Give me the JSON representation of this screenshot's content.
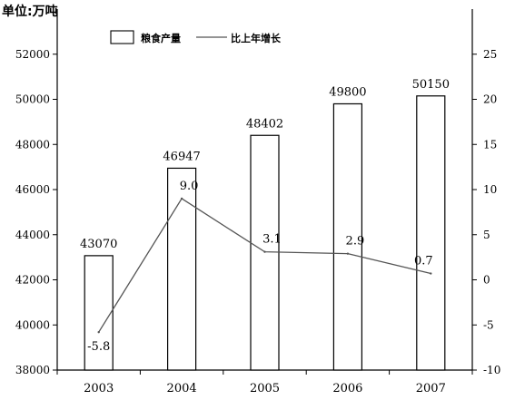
{
  "unit_label": "单位:万吨",
  "chart_data": {
    "type": "bar",
    "categories": [
      "2003",
      "2004",
      "2005",
      "2006",
      "2007"
    ],
    "series": [
      {
        "name": "粮食产量",
        "type": "bar",
        "axis": "left",
        "values": [
          43070,
          46947,
          48402,
          49800,
          50150
        ]
      },
      {
        "name": "比上年增长",
        "type": "line",
        "axis": "right",
        "values": [
          -5.8,
          9.0,
          3.1,
          2.9,
          0.7
        ]
      }
    ],
    "bar_value_labels": [
      "43070",
      "46947",
      "48402",
      "49800",
      "50150"
    ],
    "line_value_labels": [
      "-5.8",
      "9.0",
      "3.1",
      "2.9",
      "0.7"
    ],
    "y_left": {
      "min": 38000,
      "max": 54000,
      "ticks": [
        38000,
        40000,
        42000,
        44000,
        46000,
        48000,
        50000,
        52000
      ]
    },
    "y_right": {
      "min": -10,
      "max": 30,
      "ticks": [
        -10,
        -5,
        0,
        5,
        10,
        15,
        20,
        25
      ]
    },
    "legend": {
      "position": "top-center",
      "bar_label": "粮食产量",
      "line_label": "比上年增长"
    },
    "grid": false,
    "colors": {
      "bar_fill": "#ffffff",
      "bar_stroke": "#000000",
      "line": "#555555",
      "axis": "#000000"
    }
  }
}
